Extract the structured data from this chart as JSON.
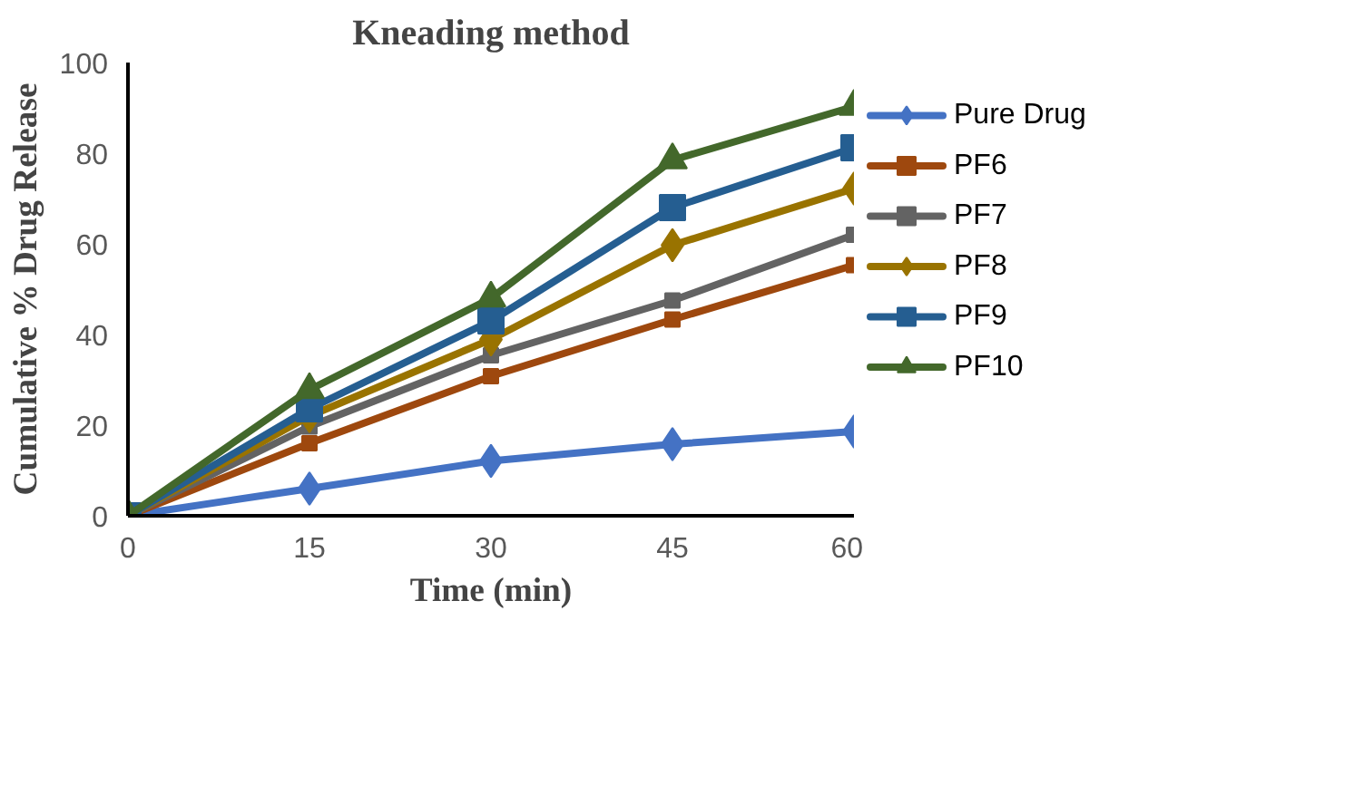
{
  "chart_data": {
    "type": "line",
    "title": "Kneading method",
    "xlabel": "Time (min)",
    "ylabel": "Cumulative % Drug Release",
    "x": [
      0,
      15,
      30,
      45,
      60
    ],
    "series": [
      {
        "name": "Pure Drug",
        "color": "#4472c4",
        "marker": "diamond",
        "values": [
          0,
          6,
          12.1,
          15.8,
          18.6
        ]
      },
      {
        "name": "PF6",
        "color": "#9e480e",
        "marker": "square",
        "values": [
          0,
          16,
          30.8,
          43.3,
          55.3
        ]
      },
      {
        "name": "PF7",
        "color": "#636363",
        "marker": "square",
        "values": [
          0,
          19.7,
          35.4,
          47.5,
          62
        ]
      },
      {
        "name": "PF8",
        "color": "#997300",
        "marker": "diamond",
        "values": [
          0,
          22,
          38.9,
          59.7,
          72.2
        ]
      },
      {
        "name": "PF9",
        "color": "#255e91",
        "marker": "square",
        "values": [
          0,
          23.6,
          43,
          68,
          81.2
        ]
      },
      {
        "name": "PF10",
        "color": "#43682b",
        "marker": "triangle",
        "values": [
          0,
          27.8,
          48,
          78.5,
          90.3
        ]
      }
    ],
    "xlim": [
      0,
      60
    ],
    "xticks": [
      0,
      15,
      30,
      45,
      60
    ],
    "ylim": [
      0,
      100
    ],
    "yticks": [
      0,
      20,
      40,
      60,
      80,
      100
    ],
    "grid": false,
    "legend": "right",
    "line_style": "solid"
  }
}
